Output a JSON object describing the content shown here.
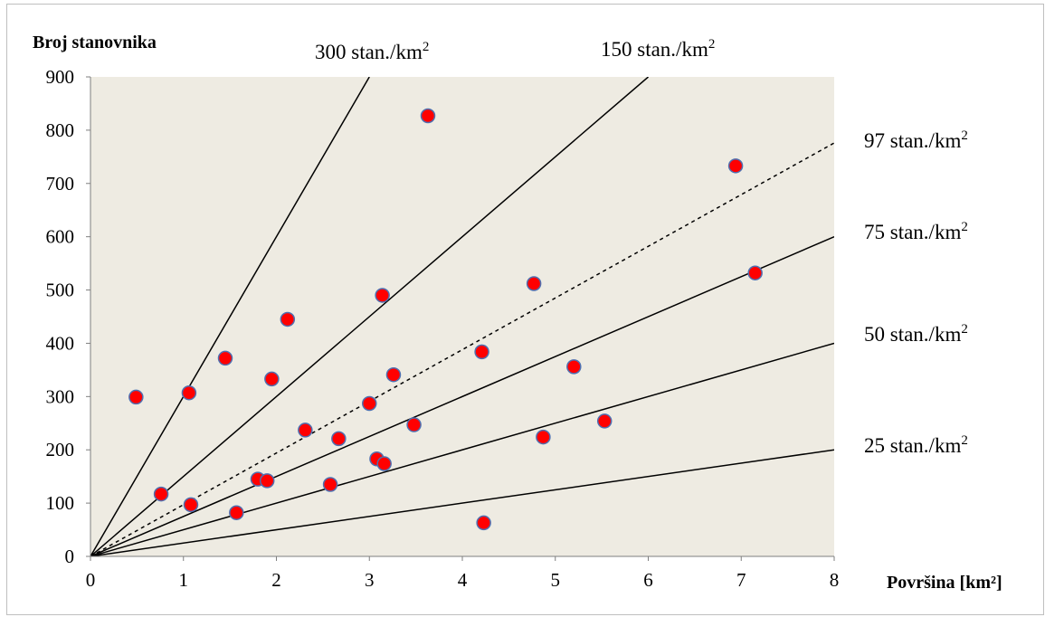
{
  "chart_data": {
    "type": "scatter",
    "xlabel": "Površina [km²]",
    "ylabel": "Broj stanovnika",
    "xlim": [
      0,
      8
    ],
    "ylim": [
      0,
      900
    ],
    "x_ticks": [
      0,
      1,
      2,
      3,
      4,
      5,
      6,
      7,
      8
    ],
    "y_ticks": [
      0,
      100,
      200,
      300,
      400,
      500,
      600,
      700,
      800,
      900
    ],
    "grid": false,
    "plot_background": "#eeebe2",
    "marker_color": "#ff0000",
    "marker_edge_color": "#4f6fb0",
    "points": [
      {
        "x": 0.49,
        "y": 299
      },
      {
        "x": 0.76,
        "y": 117
      },
      {
        "x": 1.06,
        "y": 307
      },
      {
        "x": 1.08,
        "y": 97
      },
      {
        "x": 1.45,
        "y": 372
      },
      {
        "x": 1.57,
        "y": 82
      },
      {
        "x": 1.8,
        "y": 145
      },
      {
        "x": 1.9,
        "y": 142
      },
      {
        "x": 1.95,
        "y": 333
      },
      {
        "x": 2.12,
        "y": 445
      },
      {
        "x": 2.31,
        "y": 237
      },
      {
        "x": 2.58,
        "y": 135
      },
      {
        "x": 2.67,
        "y": 221
      },
      {
        "x": 3.0,
        "y": 287
      },
      {
        "x": 3.08,
        "y": 183
      },
      {
        "x": 3.14,
        "y": 490
      },
      {
        "x": 3.16,
        "y": 174
      },
      {
        "x": 3.26,
        "y": 341
      },
      {
        "x": 3.48,
        "y": 247
      },
      {
        "x": 3.63,
        "y": 827
      },
      {
        "x": 4.21,
        "y": 384
      },
      {
        "x": 4.23,
        "y": 63
      },
      {
        "x": 4.77,
        "y": 512
      },
      {
        "x": 4.87,
        "y": 224
      },
      {
        "x": 5.2,
        "y": 356
      },
      {
        "x": 5.53,
        "y": 254
      },
      {
        "x": 6.94,
        "y": 733
      },
      {
        "x": 7.15,
        "y": 532
      }
    ],
    "reference_lines": [
      {
        "slope": 300,
        "label": "300 stan./km",
        "sup": "2",
        "dashed": false
      },
      {
        "slope": 150,
        "label": "150 stan./km",
        "sup": "2",
        "dashed": false
      },
      {
        "slope": 97,
        "label": "97 stan./km",
        "sup": "2",
        "dashed": true
      },
      {
        "slope": 75,
        "label": "75 stan./km",
        "sup": "2",
        "dashed": false
      },
      {
        "slope": 50,
        "label": "50 stan./km",
        "sup": "2",
        "dashed": false
      },
      {
        "slope": 25,
        "label": "25 stan./km",
        "sup": "2",
        "dashed": false
      }
    ]
  }
}
